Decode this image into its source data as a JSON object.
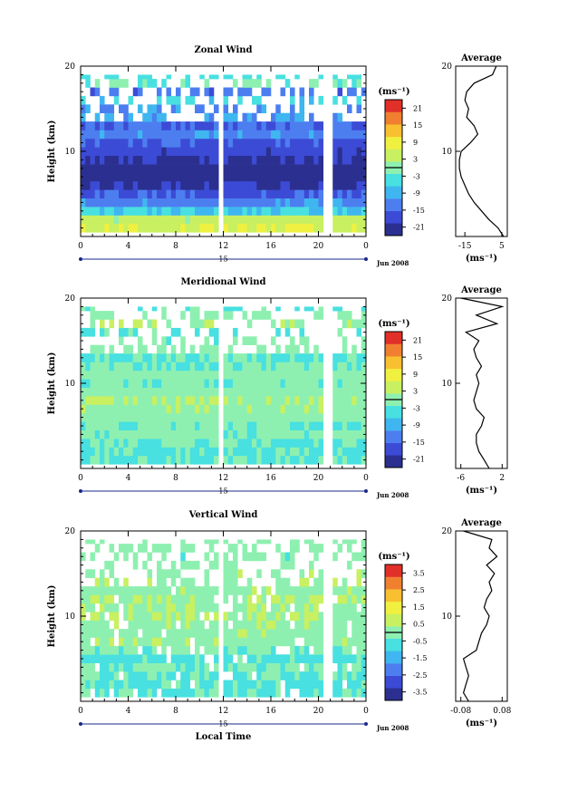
{
  "chart_data": [
    {
      "type": "heatmap",
      "title": "Zonal Wind",
      "ylabel": "Height (km)",
      "y_ticks": [
        "20",
        "10"
      ],
      "ylim": [
        0,
        20
      ],
      "x_ticks": [
        "0",
        "4",
        "8",
        "12",
        "16",
        "20",
        "0"
      ],
      "xlim": [
        0,
        24
      ],
      "date_day": "15",
      "date_month": "Jun 2008",
      "colorbar_unit": "(ms⁻¹)",
      "colorbar_labels": [
        "21",
        "15",
        "9",
        "3",
        "-3",
        "-9",
        "-15",
        "-21"
      ],
      "colorbar_min": -24,
      "colorbar_max": 24,
      "data_gaps_hours": [
        11.8,
        20.8
      ],
      "profile_rows_km": [
        1,
        2,
        3,
        4,
        5,
        6,
        7,
        8,
        9,
        10,
        11,
        12,
        13,
        14,
        15,
        16,
        17,
        18,
        19
      ],
      "profile_values": [
        6,
        4,
        -6,
        -12,
        -16,
        -20,
        -22,
        -22,
        -20,
        -18,
        -16,
        -12,
        -15,
        -10,
        -12,
        -5,
        -14,
        -2,
        -4
      ],
      "average_title": "Average",
      "average_x_ticks": [
        "-15",
        "5"
      ],
      "average_xlim": [
        -20,
        8
      ],
      "average_y_ticks": [
        "20",
        "10"
      ],
      "average_unit": "(ms⁻¹)",
      "average_profile": {
        "height_km": [
          0,
          1,
          2,
          3,
          4,
          5,
          6,
          7,
          8,
          9,
          10,
          11,
          12,
          13,
          14,
          15,
          16,
          17,
          18,
          19,
          20
        ],
        "value": [
          6,
          3,
          -2,
          -6,
          -10,
          -13,
          -15,
          -17,
          -18,
          -18,
          -17,
          -12,
          -8,
          -10,
          -14,
          -13,
          -15,
          -14,
          -10,
          0,
          2
        ]
      }
    },
    {
      "type": "heatmap",
      "title": "Meridional Wind",
      "ylabel": "Height (km)",
      "y_ticks": [
        "20",
        "10"
      ],
      "ylim": [
        0,
        20
      ],
      "x_ticks": [
        "0",
        "4",
        "8",
        "12",
        "16",
        "20",
        "0"
      ],
      "xlim": [
        0,
        24
      ],
      "date_day": "15",
      "date_month": "Jun 2008",
      "colorbar_unit": "(ms⁻¹)",
      "colorbar_labels": [
        "21",
        "15",
        "9",
        "3",
        "-3",
        "-9",
        "-15",
        "-21"
      ],
      "colorbar_min": -24,
      "colorbar_max": 24,
      "data_gaps_hours": [
        11.8,
        20.8
      ],
      "profile_rows_km": [
        1,
        2,
        3,
        4,
        5,
        6,
        7,
        8,
        9,
        10,
        11,
        12,
        13,
        14,
        15,
        16,
        17,
        18,
        19
      ],
      "profile_values": [
        -2,
        -3,
        -2,
        -1,
        -2,
        0,
        1,
        2,
        0,
        -1,
        0,
        -2,
        -3,
        0,
        -1,
        -3,
        2,
        0,
        -2
      ],
      "average_title": "Average",
      "average_x_ticks": [
        "-6",
        "2"
      ],
      "average_xlim": [
        -7,
        3
      ],
      "average_y_ticks": [
        "20",
        "10"
      ],
      "average_unit": "(ms⁻¹)",
      "average_profile": {
        "height_km": [
          0,
          1,
          2,
          3,
          4,
          5,
          6,
          7,
          8,
          9,
          10,
          11,
          12,
          13,
          14,
          15,
          16,
          17,
          18,
          19,
          20
        ],
        "value": [
          -0.5,
          -1.5,
          -2.5,
          -3,
          -3,
          -2,
          -1.5,
          -3,
          -3.5,
          -3,
          -2.5,
          -3,
          -2,
          -3,
          -3.5,
          -2.5,
          -5,
          1,
          -3,
          2,
          -6
        ]
      }
    },
    {
      "type": "heatmap",
      "title": "Vertical Wind",
      "ylabel": "Height (km)",
      "y_ticks": [
        "20",
        "10"
      ],
      "ylim": [
        0,
        20
      ],
      "x_ticks": [
        "0",
        "4",
        "8",
        "12",
        "16",
        "20",
        "0"
      ],
      "xlim": [
        0,
        24
      ],
      "date_day": "15",
      "date_month": "Jun 2008",
      "xlabel": "Local Time",
      "colorbar_unit": "(ms⁻¹)",
      "colorbar_labels": [
        "3.5",
        "2.5",
        "1.5",
        "0.5",
        "-0.5",
        "-1.5",
        "-2.5",
        "-3.5"
      ],
      "colorbar_min": -4,
      "colorbar_max": 4,
      "data_gaps_hours": [
        11.8,
        20.8
      ],
      "profile_rows_km": [
        1,
        2,
        3,
        4,
        5,
        6,
        7,
        8,
        9,
        10,
        11,
        12,
        13,
        14,
        15,
        16,
        17,
        18,
        19
      ],
      "profile_values": [
        -0.5,
        -0.5,
        -0.4,
        -0.3,
        -0.6,
        -0.2,
        0.1,
        0.1,
        0.2,
        0.3,
        0.2,
        0.3,
        0.1,
        0.2,
        0.1,
        0,
        -0.1,
        0,
        0.1
      ],
      "average_title": "Average",
      "average_x_ticks": [
        "-0.08",
        "0.08"
      ],
      "average_xlim": [
        -0.1,
        0.1
      ],
      "average_y_ticks": [
        "20",
        "10"
      ],
      "average_unit": "(ms⁻¹)",
      "average_profile": {
        "height_km": [
          0,
          1,
          2,
          3,
          4,
          5,
          6,
          7,
          8,
          9,
          10,
          11,
          12,
          13,
          14,
          15,
          16,
          17,
          18,
          19,
          20
        ],
        "value": [
          -0.05,
          -0.07,
          -0.06,
          -0.05,
          -0.06,
          -0.07,
          -0.02,
          -0.01,
          0.0,
          0.02,
          0.03,
          0.01,
          0.02,
          0.04,
          0.03,
          0.05,
          0.02,
          0.06,
          0.03,
          0.04,
          -0.07
        ]
      }
    }
  ]
}
